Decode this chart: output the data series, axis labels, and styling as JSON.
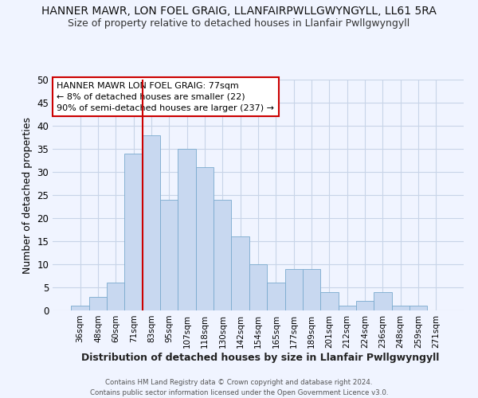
{
  "title": "HANNER MAWR, LON FOEL GRAIG, LLANFAIRPWLLGWYNGYLL, LL61 5RA",
  "subtitle": "Size of property relative to detached houses in Llanfair Pwllgwyngyll",
  "xlabel": "Distribution of detached houses by size in Llanfair Pwllgwyngyll",
  "ylabel": "Number of detached properties",
  "categories": [
    "36sqm",
    "48sqm",
    "60sqm",
    "71sqm",
    "83sqm",
    "95sqm",
    "107sqm",
    "118sqm",
    "130sqm",
    "142sqm",
    "154sqm",
    "165sqm",
    "177sqm",
    "189sqm",
    "201sqm",
    "212sqm",
    "224sqm",
    "236sqm",
    "248sqm",
    "259sqm",
    "271sqm"
  ],
  "values": [
    1,
    3,
    6,
    34,
    38,
    24,
    35,
    31,
    24,
    16,
    10,
    6,
    9,
    9,
    4,
    1,
    2,
    4,
    1,
    1,
    0
  ],
  "bar_color": "#c8d8f0",
  "bar_edge_color": "#7aaace",
  "red_line_x": 3.5,
  "ylim": [
    0,
    50
  ],
  "yticks": [
    0,
    5,
    10,
    15,
    20,
    25,
    30,
    35,
    40,
    45,
    50
  ],
  "annotation_title": "HANNER MAWR LON FOEL GRAIG: 77sqm",
  "annotation_line1": "← 8% of detached houses are smaller (22)",
  "annotation_line2": "90% of semi-detached houses are larger (237) →",
  "annotation_box_color": "#ffffff",
  "annotation_box_edge": "#cc0000",
  "footer": "Contains HM Land Registry data © Crown copyright and database right 2024.\nContains public sector information licensed under the Open Government Licence v3.0.",
  "bg_color": "#f0f4ff",
  "grid_color": "#c8d4e8",
  "title_fontsize": 10,
  "subtitle_fontsize": 9
}
